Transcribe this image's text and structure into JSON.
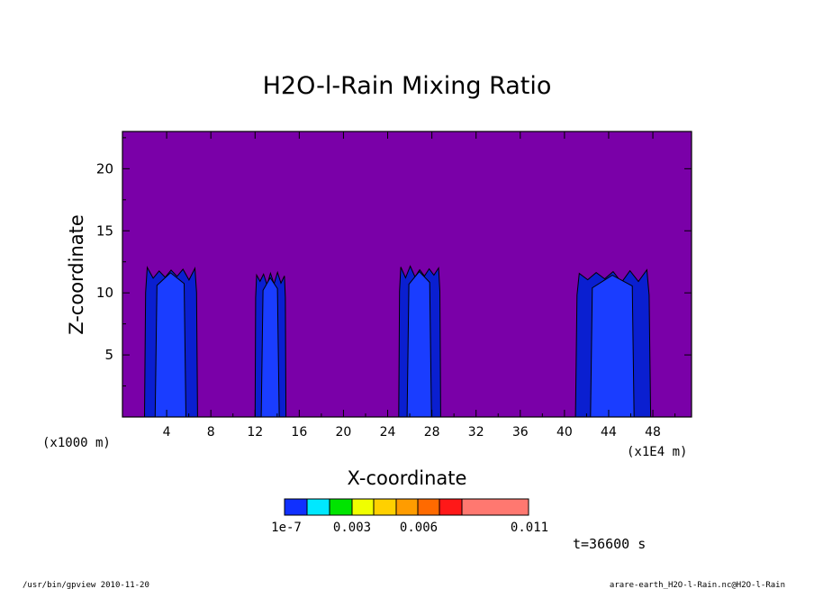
{
  "chart_data": {
    "type": "heatmap",
    "title": "H2O-l-Rain Mixing Ratio",
    "xlabel": "X-coordinate",
    "ylabel": "Z-coordinate",
    "x_unit_left": "(x1000 m)",
    "x_unit_right": "(x1E4 m)",
    "xlim": [
      0,
      51.5
    ],
    "ylim": [
      0,
      23
    ],
    "x_ticks": [
      4,
      8,
      12,
      16,
      20,
      24,
      28,
      32,
      36,
      40,
      44,
      48
    ],
    "y_ticks": [
      5,
      10,
      15,
      20
    ],
    "background_color": "#7a00a8",
    "contour_fill_colors": [
      "#1a3dff",
      "#0a1fd0"
    ],
    "rain_columns": [
      {
        "x_min": 2.0,
        "x_max": 6.8,
        "top": 12.2
      },
      {
        "x_min": 12.0,
        "x_max": 14.8,
        "top": 11.8
      },
      {
        "x_min": 25.0,
        "x_max": 28.8,
        "top": 12.3
      },
      {
        "x_min": 41.0,
        "x_max": 47.8,
        "top": 12.0
      }
    ],
    "colorbar": {
      "colors": [
        "#1030ff",
        "#00e8ff",
        "#00e400",
        "#f0ff00",
        "#ffd000",
        "#ff9c00",
        "#ff6a00",
        "#ff1818",
        "#ff7870"
      ],
      "labels": [
        "1e-7",
        "0.003",
        "0.006",
        "0.011"
      ]
    },
    "time_label": "t=36600 s"
  },
  "footer": {
    "left": "/usr/bin/gpview   2010-11-20",
    "right": "arare-earth_H2O-l-Rain.nc@H2O-l-Rain"
  }
}
